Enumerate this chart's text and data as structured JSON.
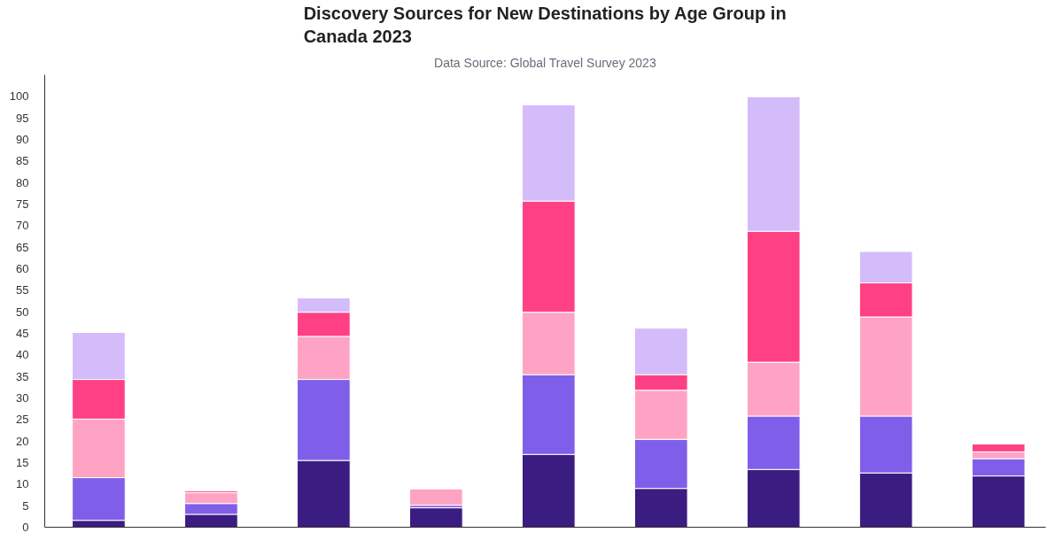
{
  "chart_data": {
    "type": "bar",
    "stacked": true,
    "title": "Discovery Sources for New Destinations by Age Group in Canada 2023",
    "subtitle": "Data Source: Global Travel Survey 2023",
    "categories": [
      null,
      null,
      null,
      null,
      null,
      null,
      null,
      null,
      null
    ],
    "series": [
      {
        "color": "#3b1c80",
        "values": [
          1.6,
          3.0,
          15.5,
          4.5,
          16.9,
          9.0,
          13.4,
          12.6,
          11.9
        ]
      },
      {
        "color": "#7f5ee9",
        "values": [
          9.9,
          2.5,
          18.8,
          0.6,
          18.5,
          11.4,
          12.4,
          13.2,
          4.0
        ]
      },
      {
        "color": "#ffa3c4",
        "values": [
          13.6,
          2.5,
          10.0,
          3.8,
          14.5,
          11.4,
          12.5,
          23.0,
          1.6
        ]
      },
      {
        "color": "#ff4085",
        "values": [
          9.2,
          0.4,
          5.6,
          null,
          25.8,
          3.6,
          30.4,
          7.9,
          1.8
        ]
      },
      {
        "color": "#d4bbf9",
        "values": [
          10.9,
          null,
          3.3,
          null,
          22.3,
          10.8,
          31.2,
          7.3,
          null
        ]
      }
    ],
    "ylim": [
      0,
      105
    ],
    "yticks": [
      0,
      5,
      10,
      15,
      20,
      25,
      30,
      35,
      40,
      45,
      50,
      55,
      60,
      65,
      70,
      75,
      80,
      85,
      90,
      95,
      100
    ],
    "tick_labels": "y"
  }
}
